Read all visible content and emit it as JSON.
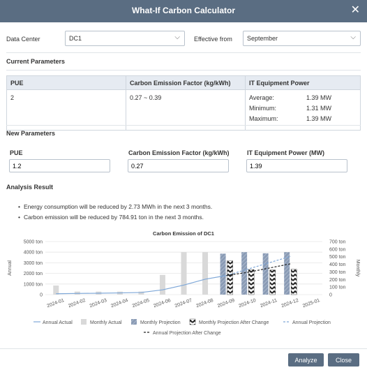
{
  "dialog": {
    "title": "What-If Carbon Calculator"
  },
  "filters": {
    "data_center_label": "Data Center",
    "data_center_value": "DC1",
    "effective_label": "Effective from",
    "effective_value": "September"
  },
  "current": {
    "heading": "Current Parameters",
    "headers": [
      "PUE",
      "Carbon Emission Factor (kg/kWh)",
      "IT Equipment Power"
    ],
    "pue": "2",
    "factor": "0.27 ~ 0.39",
    "it_power": [
      {
        "k": "Average:",
        "v": "1.39 MW"
      },
      {
        "k": "Minimum:",
        "v": "1.31 MW"
      },
      {
        "k": "Maximum:",
        "v": "1.39 MW"
      }
    ]
  },
  "new": {
    "heading": "New Parameters",
    "pue_label": "PUE",
    "pue_value": "1.2",
    "factor_label": "Carbon Emission Factor (kg/kWh)",
    "factor_value": "0.27",
    "power_label": "IT Equipment Power (MW)",
    "power_value": "1.39"
  },
  "analysis": {
    "heading": "Analysis Result",
    "bullets": [
      "Energy consumption will be reduced by 2.73 MWh in the next 3 months.",
      "Carbon emission will be reduced by 784.91 ton in the next 3 months."
    ]
  },
  "chart_data": {
    "type": "bar",
    "title": "Carbon Emission of  DC1",
    "ylabel": "Annual",
    "y2label": "Monthly",
    "ylim": [
      0,
      5000
    ],
    "y2lim": [
      0,
      700
    ],
    "y_ticks": [
      "0",
      "1000  ton",
      "2000  ton",
      "3000  ton",
      "4000  ton",
      "5000  ton"
    ],
    "y2_ticks": [
      "0",
      "100  ton",
      "200  ton",
      "300  ton",
      "400  ton",
      "500  ton",
      "600  ton",
      "700  ton"
    ],
    "categories": [
      "2024-01",
      "2024-02",
      "2024-03",
      "2024-04",
      "2024-05",
      "2024-06",
      "2024-07",
      "2024-08",
      "2024-09",
      "2024-10",
      "2024-11",
      "2024-12",
      "2025-01"
    ],
    "series": [
      {
        "name": "Annual Actual",
        "kind": "line",
        "axis": "left",
        "color": "#7fa8d8",
        "values": [
          80,
          110,
          130,
          160,
          200,
          450,
          900,
          1450,
          1800,
          null,
          null,
          null,
          null
        ]
      },
      {
        "name": "Monthly Actual",
        "kind": "bar",
        "axis": "right",
        "color": "#d9d9d9",
        "values": [
          120,
          40,
          40,
          40,
          40,
          260,
          560,
          560,
          310,
          null,
          null,
          null,
          null
        ]
      },
      {
        "name": "Monthly Projection",
        "kind": "bar",
        "axis": "right",
        "color": "#8a9bb5",
        "values": [
          null,
          null,
          null,
          null,
          null,
          null,
          null,
          null,
          540,
          560,
          545,
          560,
          null
        ]
      },
      {
        "name": "Monthly Projection After Change",
        "kind": "bar",
        "axis": "right",
        "color": "#222222",
        "values": [
          null,
          null,
          null,
          null,
          null,
          null,
          null,
          null,
          450,
          330,
          325,
          335,
          null
        ]
      },
      {
        "name": "Annual Projection",
        "kind": "line",
        "axis": "left",
        "color": "#7fa8d8",
        "dashed": true,
        "values": [
          null,
          null,
          null,
          null,
          null,
          null,
          null,
          null,
          1800,
          2400,
          3000,
          3600,
          null
        ]
      },
      {
        "name": "Annual Projection After Change",
        "kind": "line",
        "axis": "left",
        "color": "#222222",
        "dashed": true,
        "values": [
          null,
          null,
          null,
          null,
          null,
          null,
          null,
          null,
          1800,
          2100,
          2500,
          2900,
          null
        ]
      }
    ]
  },
  "footer": {
    "analyze": "Analyze",
    "close": "Close"
  },
  "icons": {
    "close": "close-icon",
    "chevron": "chevron-down-icon"
  },
  "colors": {
    "titlebar": "#5a6d82",
    "header_bg": "#e6ebf2"
  }
}
